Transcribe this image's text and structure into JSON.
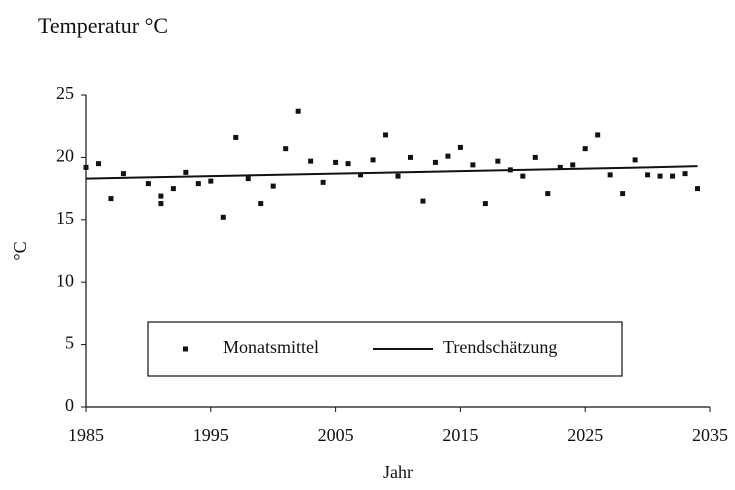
{
  "chart_data": {
    "type": "scatter",
    "title": "Temperatur °C",
    "xlabel": "Jahr",
    "ylabel": "°C",
    "xlim": [
      1985,
      2035
    ],
    "xticks": [
      1985,
      1995,
      2005,
      2015,
      2025,
      2035
    ],
    "ylim": [
      0,
      25
    ],
    "yticks": [
      0,
      5,
      10,
      15,
      20,
      25
    ],
    "grid": false,
    "legend": "bottom",
    "series": [
      {
        "name": "Monatsmittel",
        "type": "scatter",
        "color": "#111111",
        "x": [
          1985,
          1986,
          1987,
          1988,
          1990,
          1991,
          1991,
          1992,
          1993,
          1994,
          1995,
          1996,
          1997,
          1998,
          1999,
          2000,
          2001,
          2002,
          2003,
          2004,
          2005,
          2006,
          2007,
          2008,
          2009,
          2010,
          2011,
          2012,
          2013,
          2014,
          2015,
          2016,
          2017,
          2018,
          2019,
          2020,
          2021,
          2022,
          2023,
          2024,
          2025,
          2026,
          2027,
          2028,
          2029,
          2030,
          2031,
          2032,
          2033,
          2034
        ],
        "values": [
          19.2,
          19.5,
          16.7,
          18.7,
          17.9,
          16.9,
          16.3,
          17.5,
          18.8,
          17.9,
          18.1,
          15.2,
          21.6,
          18.3,
          16.3,
          17.7,
          20.7,
          23.7,
          19.7,
          18.0,
          19.6,
          19.5,
          18.6,
          19.8,
          21.8,
          18.5,
          20.0,
          16.5,
          19.6,
          20.1,
          20.8,
          19.4,
          16.3,
          19.7,
          19.0,
          18.5,
          20.0,
          17.1,
          19.2,
          19.4,
          20.7,
          21.8,
          18.6,
          17.1,
          19.8,
          18.6,
          18.5,
          18.5,
          18.7,
          17.5
        ]
      },
      {
        "name": "Trendschätzung",
        "type": "line",
        "color": "#111111",
        "x": [
          1985,
          1995,
          2005,
          2015,
          2020,
          2030,
          2034
        ],
        "values": [
          18.3,
          18.5,
          18.7,
          18.9,
          19.0,
          19.2,
          19.3
        ]
      }
    ]
  }
}
